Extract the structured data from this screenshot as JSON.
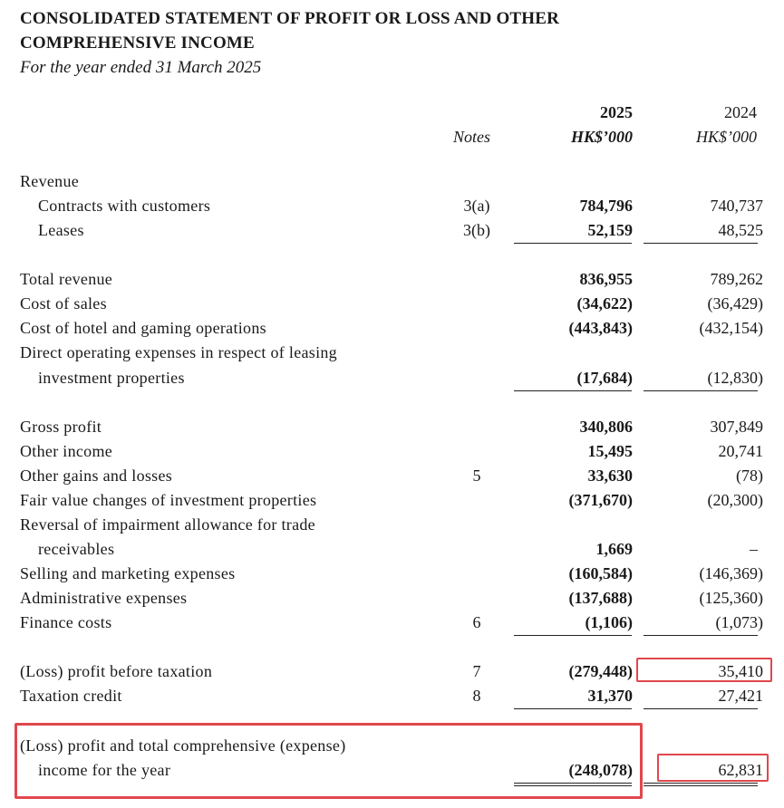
{
  "statement": {
    "title_line1": "CONSOLIDATED STATEMENT OF PROFIT OR LOSS AND OTHER",
    "title_line2": "COMPREHENSIVE INCOME",
    "subtitle": "For the year ended 31 March 2025"
  },
  "headers": {
    "notes": "Notes",
    "year_2025": "2025",
    "unit_2025": "HK$’000",
    "year_2024": "2024",
    "unit_2024": "HK$’000"
  },
  "rows": {
    "revenue_heading": "Revenue",
    "contracts": {
      "label": "Contracts with customers",
      "note": "3(a)",
      "v2025": "784,796",
      "v2024": "740,737"
    },
    "leases": {
      "label": "Leases",
      "note": "3(b)",
      "v2025": "52,159",
      "v2024": "48,525"
    },
    "total_revenue": {
      "label": "Total revenue",
      "v2025": "836,955",
      "v2024": "789,262"
    },
    "cost_of_sales": {
      "label": "Cost of sales",
      "v2025": "(34,622)",
      "v2024": "(36,429)"
    },
    "cost_hotel": {
      "label": "Cost of hotel and gaming operations",
      "v2025": "(443,843)",
      "v2024": "(432,154)"
    },
    "direct_opex": {
      "label_line1": "Direct operating expenses in respect of leasing",
      "label_line2": "investment properties",
      "v2025": "(17,684)",
      "v2024": "(12,830)"
    },
    "gross_profit": {
      "label": "Gross profit",
      "v2025": "340,806",
      "v2024": "307,849"
    },
    "other_income": {
      "label": "Other income",
      "v2025": "15,495",
      "v2024": "20,741"
    },
    "other_gains": {
      "label": "Other gains and losses",
      "note": "5",
      "v2025": "33,630",
      "v2024": "(78)"
    },
    "fair_value": {
      "label": "Fair value changes of investment properties",
      "v2025": "(371,670)",
      "v2024": "(20,300)"
    },
    "reversal": {
      "label_line1": "Reversal of impairment allowance for trade",
      "label_line2": "receivables",
      "v2025": "1,669",
      "v2024": "–"
    },
    "selling": {
      "label": "Selling and marketing expenses",
      "v2025": "(160,584)",
      "v2024": "(146,369)"
    },
    "admin": {
      "label": "Administrative expenses",
      "v2025": "(137,688)",
      "v2024": "(125,360)"
    },
    "finance": {
      "label": "Finance costs",
      "note": "6",
      "v2025": "(1,106)",
      "v2024": "(1,073)"
    },
    "pbt": {
      "label": "(Loss) profit before taxation",
      "note": "7",
      "v2025": "(279,448)",
      "v2024": "35,410"
    },
    "tax": {
      "label": "Taxation credit",
      "note": "8",
      "v2025": "31,370",
      "v2024": "27,421"
    },
    "total": {
      "label_line1": "(Loss) profit and total comprehensive (expense)",
      "label_line2": "income for the year",
      "v2025": "(248,078)",
      "v2024": "62,831"
    }
  },
  "highlight_color": "#e0474c"
}
